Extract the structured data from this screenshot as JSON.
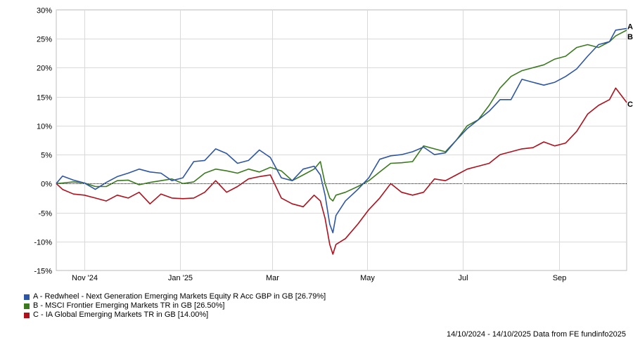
{
  "chart_data": {
    "type": "line",
    "x_range": [
      "2024-10-14",
      "2025-10-14"
    ],
    "ylim": [
      -15,
      30
    ],
    "y_ticks": [
      30,
      25,
      20,
      15,
      10,
      5,
      0,
      -5,
      -10,
      -15
    ],
    "y_tick_labels": [
      "30%",
      "25%",
      "20%",
      "15%",
      "10%",
      "5%",
      "0%",
      "-5%",
      "-10%",
      "-15%"
    ],
    "x_ticks": [
      {
        "date": "2024-11-01",
        "label": "Nov '24"
      },
      {
        "date": "2025-01-01",
        "label": "Jan '25"
      },
      {
        "date": "2025-03-01",
        "label": "Mar"
      },
      {
        "date": "2025-05-01",
        "label": "May"
      },
      {
        "date": "2025-07-01",
        "label": "Jul"
      },
      {
        "date": "2025-09-01",
        "label": "Sep"
      }
    ],
    "grid": true,
    "series": [
      {
        "id": "A",
        "name": "A - Redwheel - Next Generation Emerging Markets Equity R Acc GBP in GB [26.79%]",
        "color": "#2e56a6",
        "points": [
          [
            "2024-10-14",
            0
          ],
          [
            "2024-10-18",
            1.3
          ],
          [
            "2024-10-25",
            0.6
          ],
          [
            "2024-11-01",
            0.1
          ],
          [
            "2024-11-08",
            -1.0
          ],
          [
            "2024-11-15",
            0.2
          ],
          [
            "2024-11-22",
            1.2
          ],
          [
            "2024-11-29",
            1.8
          ],
          [
            "2024-12-06",
            2.5
          ],
          [
            "2024-12-13",
            2.0
          ],
          [
            "2024-12-20",
            1.8
          ],
          [
            "2024-12-27",
            0.5
          ],
          [
            "2025-01-03",
            1.0
          ],
          [
            "2025-01-10",
            3.8
          ],
          [
            "2025-01-17",
            4.0
          ],
          [
            "2025-01-24",
            6.0
          ],
          [
            "2025-01-31",
            5.2
          ],
          [
            "2025-02-07",
            3.5
          ],
          [
            "2025-02-14",
            4.0
          ],
          [
            "2025-02-21",
            5.8
          ],
          [
            "2025-02-28",
            4.5
          ],
          [
            "2025-03-07",
            1.0
          ],
          [
            "2025-03-14",
            0.5
          ],
          [
            "2025-03-21",
            2.5
          ],
          [
            "2025-03-28",
            3.0
          ],
          [
            "2025-04-01",
            1.5
          ],
          [
            "2025-04-04",
            -2.0
          ],
          [
            "2025-04-07",
            -7.0
          ],
          [
            "2025-04-09",
            -8.5
          ],
          [
            "2025-04-11",
            -5.5
          ],
          [
            "2025-04-17",
            -3.0
          ],
          [
            "2025-04-25",
            -1.0
          ],
          [
            "2025-05-02",
            1.0
          ],
          [
            "2025-05-09",
            4.2
          ],
          [
            "2025-05-16",
            4.8
          ],
          [
            "2025-05-23",
            5.0
          ],
          [
            "2025-05-30",
            5.5
          ],
          [
            "2025-06-06",
            6.3
          ],
          [
            "2025-06-13",
            5.0
          ],
          [
            "2025-06-20",
            5.3
          ],
          [
            "2025-06-27",
            7.5
          ],
          [
            "2025-07-04",
            9.5
          ],
          [
            "2025-07-11",
            11.0
          ],
          [
            "2025-07-18",
            12.5
          ],
          [
            "2025-07-25",
            14.5
          ],
          [
            "2025-08-01",
            14.5
          ],
          [
            "2025-08-08",
            18.0
          ],
          [
            "2025-08-15",
            17.5
          ],
          [
            "2025-08-22",
            17.0
          ],
          [
            "2025-08-29",
            17.5
          ],
          [
            "2025-09-05",
            18.5
          ],
          [
            "2025-09-12",
            19.8
          ],
          [
            "2025-09-19",
            22.0
          ],
          [
            "2025-09-26",
            24.0
          ],
          [
            "2025-10-03",
            24.5
          ],
          [
            "2025-10-07",
            26.5
          ],
          [
            "2025-10-14",
            26.79
          ]
        ]
      },
      {
        "id": "B",
        "name": "B - MSCI Frontier Emerging Markets TR in GB [26.50%]",
        "color": "#3a7a1e",
        "points": [
          [
            "2024-10-14",
            0
          ],
          [
            "2024-10-18",
            0.1
          ],
          [
            "2024-10-25",
            0.3
          ],
          [
            "2024-11-01",
            0.1
          ],
          [
            "2024-11-08",
            -0.5
          ],
          [
            "2024-11-15",
            -0.5
          ],
          [
            "2024-11-22",
            0.5
          ],
          [
            "2024-11-29",
            0.6
          ],
          [
            "2024-12-06",
            -0.2
          ],
          [
            "2024-12-13",
            0.2
          ],
          [
            "2024-12-20",
            0.5
          ],
          [
            "2024-12-27",
            0.8
          ],
          [
            "2025-01-03",
            0.0
          ],
          [
            "2025-01-10",
            0.3
          ],
          [
            "2025-01-17",
            1.8
          ],
          [
            "2025-01-24",
            2.5
          ],
          [
            "2025-01-31",
            2.2
          ],
          [
            "2025-02-07",
            1.8
          ],
          [
            "2025-02-14",
            2.5
          ],
          [
            "2025-02-21",
            2.0
          ],
          [
            "2025-02-28",
            2.8
          ],
          [
            "2025-03-07",
            2.2
          ],
          [
            "2025-03-14",
            0.5
          ],
          [
            "2025-03-21",
            1.5
          ],
          [
            "2025-03-28",
            2.5
          ],
          [
            "2025-04-01",
            3.8
          ],
          [
            "2025-04-04",
            0.0
          ],
          [
            "2025-04-07",
            -2.5
          ],
          [
            "2025-04-09",
            -3.0
          ],
          [
            "2025-04-11",
            -2.0
          ],
          [
            "2025-04-17",
            -1.5
          ],
          [
            "2025-04-25",
            -0.5
          ],
          [
            "2025-05-02",
            0.5
          ],
          [
            "2025-05-09",
            2.0
          ],
          [
            "2025-05-16",
            3.5
          ],
          [
            "2025-05-23",
            3.6
          ],
          [
            "2025-05-30",
            3.8
          ],
          [
            "2025-06-06",
            6.5
          ],
          [
            "2025-06-13",
            6.0
          ],
          [
            "2025-06-20",
            5.5
          ],
          [
            "2025-06-27",
            7.5
          ],
          [
            "2025-07-04",
            10.0
          ],
          [
            "2025-07-11",
            11.0
          ],
          [
            "2025-07-18",
            13.5
          ],
          [
            "2025-07-25",
            16.5
          ],
          [
            "2025-08-01",
            18.5
          ],
          [
            "2025-08-08",
            19.5
          ],
          [
            "2025-08-15",
            20.0
          ],
          [
            "2025-08-22",
            20.5
          ],
          [
            "2025-08-29",
            21.5
          ],
          [
            "2025-09-05",
            22.0
          ],
          [
            "2025-09-12",
            23.5
          ],
          [
            "2025-09-19",
            24.0
          ],
          [
            "2025-09-26",
            23.5
          ],
          [
            "2025-10-03",
            24.5
          ],
          [
            "2025-10-07",
            25.5
          ],
          [
            "2025-10-14",
            26.5
          ]
        ]
      },
      {
        "id": "C",
        "name": "C - IA Global Emerging Markets TR in GB [14.00%]",
        "color": "#b0101c",
        "points": [
          [
            "2024-10-14",
            0
          ],
          [
            "2024-10-18",
            -1.0
          ],
          [
            "2024-10-25",
            -1.8
          ],
          [
            "2024-11-01",
            -2.0
          ],
          [
            "2024-11-08",
            -2.5
          ],
          [
            "2024-11-15",
            -3.0
          ],
          [
            "2024-11-22",
            -2.0
          ],
          [
            "2024-11-29",
            -2.5
          ],
          [
            "2024-12-06",
            -1.5
          ],
          [
            "2024-12-13",
            -3.5
          ],
          [
            "2024-12-20",
            -1.8
          ],
          [
            "2024-12-27",
            -2.5
          ],
          [
            "2025-01-03",
            -2.6
          ],
          [
            "2025-01-10",
            -2.5
          ],
          [
            "2025-01-17",
            -1.5
          ],
          [
            "2025-01-24",
            0.5
          ],
          [
            "2025-01-31",
            -1.5
          ],
          [
            "2025-02-07",
            -0.5
          ],
          [
            "2025-02-14",
            0.8
          ],
          [
            "2025-02-21",
            1.2
          ],
          [
            "2025-02-28",
            1.5
          ],
          [
            "2025-03-07",
            -2.5
          ],
          [
            "2025-03-14",
            -3.5
          ],
          [
            "2025-03-21",
            -4.0
          ],
          [
            "2025-03-28",
            -2.0
          ],
          [
            "2025-04-01",
            -3.0
          ],
          [
            "2025-04-04",
            -6.0
          ],
          [
            "2025-04-07",
            -10.5
          ],
          [
            "2025-04-09",
            -12.2
          ],
          [
            "2025-04-11",
            -10.5
          ],
          [
            "2025-04-17",
            -9.5
          ],
          [
            "2025-04-25",
            -7.0
          ],
          [
            "2025-05-02",
            -4.5
          ],
          [
            "2025-05-09",
            -2.5
          ],
          [
            "2025-05-16",
            0.0
          ],
          [
            "2025-05-23",
            -1.5
          ],
          [
            "2025-05-30",
            -2.0
          ],
          [
            "2025-06-06",
            -1.5
          ],
          [
            "2025-06-13",
            0.8
          ],
          [
            "2025-06-20",
            0.5
          ],
          [
            "2025-06-27",
            1.5
          ],
          [
            "2025-07-04",
            2.5
          ],
          [
            "2025-07-11",
            3.0
          ],
          [
            "2025-07-18",
            3.5
          ],
          [
            "2025-07-25",
            5.0
          ],
          [
            "2025-08-01",
            5.5
          ],
          [
            "2025-08-08",
            6.0
          ],
          [
            "2025-08-15",
            6.2
          ],
          [
            "2025-08-22",
            7.2
          ],
          [
            "2025-08-29",
            6.5
          ],
          [
            "2025-09-05",
            7.0
          ],
          [
            "2025-09-12",
            9.0
          ],
          [
            "2025-09-19",
            12.0
          ],
          [
            "2025-09-26",
            13.5
          ],
          [
            "2025-10-03",
            14.5
          ],
          [
            "2025-10-07",
            16.5
          ],
          [
            "2025-10-14",
            14.0
          ]
        ]
      }
    ]
  },
  "end_labels": [
    "A",
    "B",
    "C"
  ],
  "footer": "14/10/2024 - 14/10/2025 Data from FE fundinfo2025"
}
